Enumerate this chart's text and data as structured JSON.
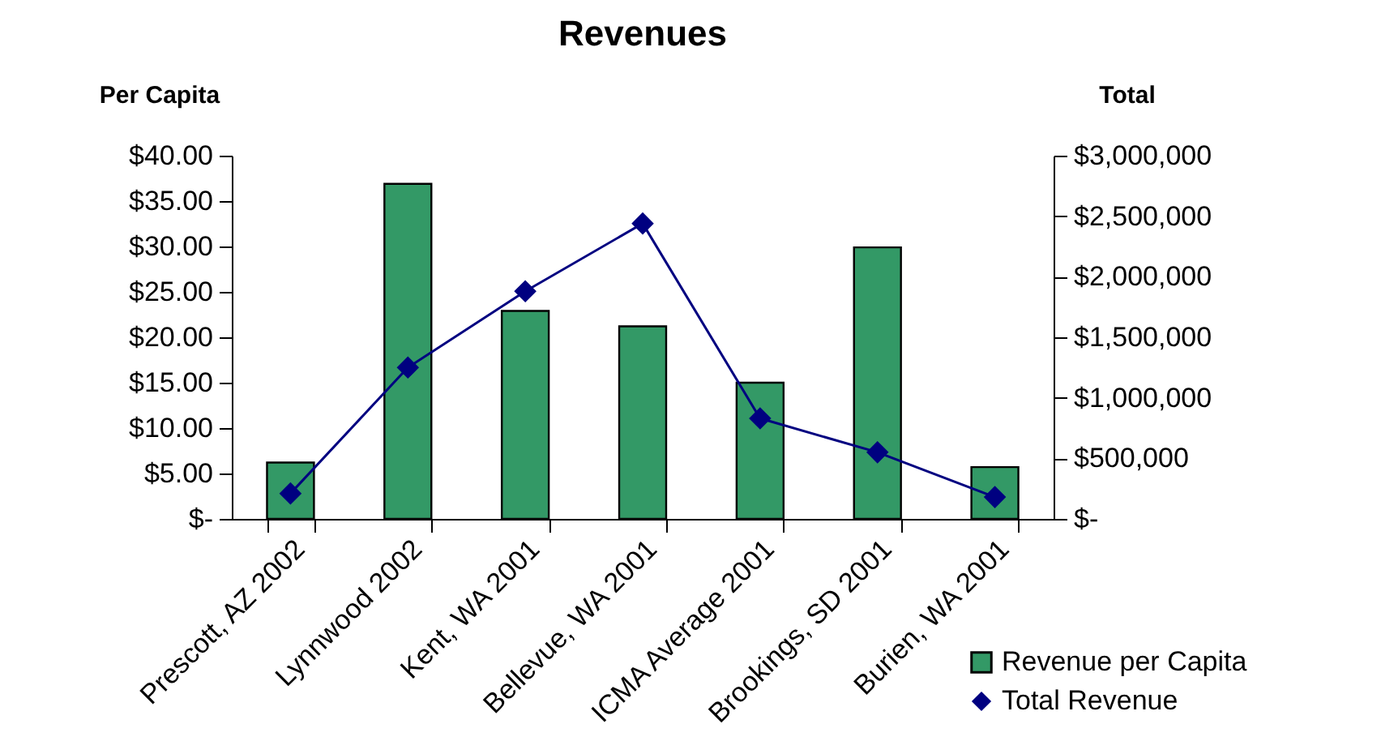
{
  "chart_data": {
    "type": "bar",
    "title": "Revenues",
    "ylabel": "Per Capita",
    "y2label": "Total",
    "categories": [
      "Prescott, AZ 2002",
      "Lynnwood 2002",
      "Kent, WA 2001",
      "Bellevue, WA 2001",
      "ICMA Average 2001",
      "Brookings, SD 2001",
      "Burien, WA 2001"
    ],
    "series": [
      {
        "name": "Revenue per Capita",
        "color": "#339966",
        "values": [
          6.2,
          36.9,
          22.9,
          21.2,
          15.0,
          29.9,
          5.7
        ]
      },
      {
        "name": "Total Revenue",
        "type": "line",
        "axis": "y2",
        "color": "#000080",
        "marker": "diamond",
        "values": [
          210000,
          1250000,
          1880000,
          2440000,
          830000,
          550000,
          180000
        ]
      }
    ],
    "ylim": [
      0,
      40
    ],
    "yticks": [
      {
        "value": 0,
        "label": "$-"
      },
      {
        "value": 5,
        "label": "$5.00"
      },
      {
        "value": 10,
        "label": "$10.00"
      },
      {
        "value": 15,
        "label": "$15.00"
      },
      {
        "value": 20,
        "label": "$20.00"
      },
      {
        "value": 25,
        "label": "$25.00"
      },
      {
        "value": 30,
        "label": "$30.00"
      },
      {
        "value": 35,
        "label": "$35.00"
      },
      {
        "value": 40,
        "label": "$40.00"
      }
    ],
    "y2lim": [
      0,
      3000000
    ],
    "y2ticks": [
      {
        "value": 0,
        "label": "$-"
      },
      {
        "value": 500000,
        "label": "$500,000"
      },
      {
        "value": 1000000,
        "label": "$1,000,000"
      },
      {
        "value": 1500000,
        "label": "$1,500,000"
      },
      {
        "value": 2000000,
        "label": "$2,000,000"
      },
      {
        "value": 2500000,
        "label": "$2,500,000"
      },
      {
        "value": 3000000,
        "label": "$3,000,000"
      }
    ],
    "grid": false,
    "legend": "bottom right"
  }
}
